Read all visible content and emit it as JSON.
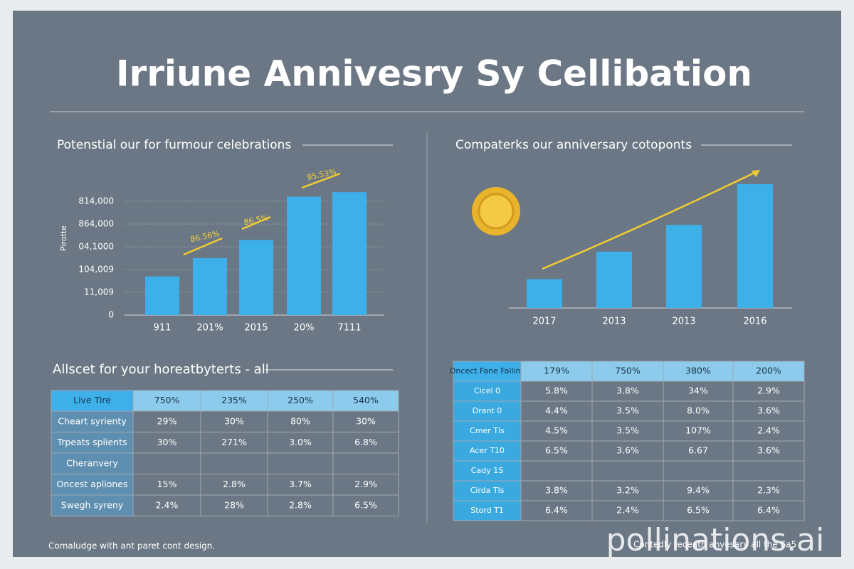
{
  "title": "Irriune Annivesry Sy Cellibation",
  "chart_data": [
    {
      "type": "bar",
      "title": "Potenstial our for furmour celebrations",
      "ylabel": "Pirotte",
      "categories": [
        "911",
        "201%",
        "2015",
        "20%",
        "7111"
      ],
      "values": [
        1.7,
        2.5,
        3.3,
        5.2,
        5.4
      ],
      "color": "#3db0ea",
      "ylim": [
        0,
        5.5
      ],
      "yticks": [
        {
          "value": 0,
          "label": "0"
        },
        {
          "value": 1,
          "label": "11,009"
        },
        {
          "value": 2,
          "label": "104,009"
        },
        {
          "value": 3,
          "label": "04,1000"
        },
        {
          "value": 4,
          "label": "864,000"
        },
        {
          "value": 5,
          "label": "814,000"
        }
      ],
      "grid": true,
      "annotations": [
        "86.56%",
        "86.5%",
        "95.53%"
      ]
    },
    {
      "type": "bar",
      "title": "Compaterks our anniversary cotoponts",
      "categories": [
        "2017",
        "2013",
        "2013",
        "2016"
      ],
      "values": [
        41,
        80,
        118,
        176
      ],
      "color": "#3db0ea",
      "ylim": [
        0,
        185
      ],
      "trend": true
    }
  ],
  "tables": [
    {
      "title": "Allscet for your horeatbyterts - all",
      "header": [
        "Live Tire",
        "750%",
        "235%",
        "250%",
        "540%"
      ],
      "rows": [
        [
          "Cheart syrienty",
          "29%",
          "30%",
          "80%",
          "30%"
        ],
        [
          "Trpeats splients",
          "30%",
          "271%",
          "3.0%",
          "6.8%"
        ],
        [
          "Cheranvery",
          null,
          null,
          null,
          null
        ],
        [
          "Oncest apliones",
          "15%",
          "2.8%",
          "3.7%",
          "2.9%"
        ],
        [
          "Swegh syreny",
          "2.4%",
          "28%",
          "2.8%",
          "6.5%"
        ]
      ]
    },
    {
      "header": [
        "Oncect Fane Fallins",
        "179%",
        "750%",
        "380%",
        "200%"
      ],
      "rows": [
        [
          "Cicel 0",
          "5.8%",
          "3.8%",
          "34%",
          "2.9%"
        ],
        [
          "Drant 0",
          "4.4%",
          "3.5%",
          "8.0%",
          "3.6%"
        ],
        [
          "Cmer Tls",
          "4.5%",
          "3.5%",
          "107%",
          "2.4%"
        ],
        [
          "Acer T10",
          "6.5%",
          "3.6%",
          "6.67",
          "3.6%"
        ],
        [
          "Cady 1S",
          null,
          null,
          null,
          null
        ],
        [
          "Cirda Tls",
          "3.8%",
          "3.2%",
          "9.4%",
          "2.3%"
        ],
        [
          "Stord T1",
          "6.4%",
          "2.4%",
          "6.5%",
          "6.4%"
        ]
      ]
    }
  ],
  "footer": [
    "Comaludge with ant paret cont design.",
    "Contedly feceatn anvesary all the 6a5"
  ],
  "watermark": "pollinations.ai"
}
